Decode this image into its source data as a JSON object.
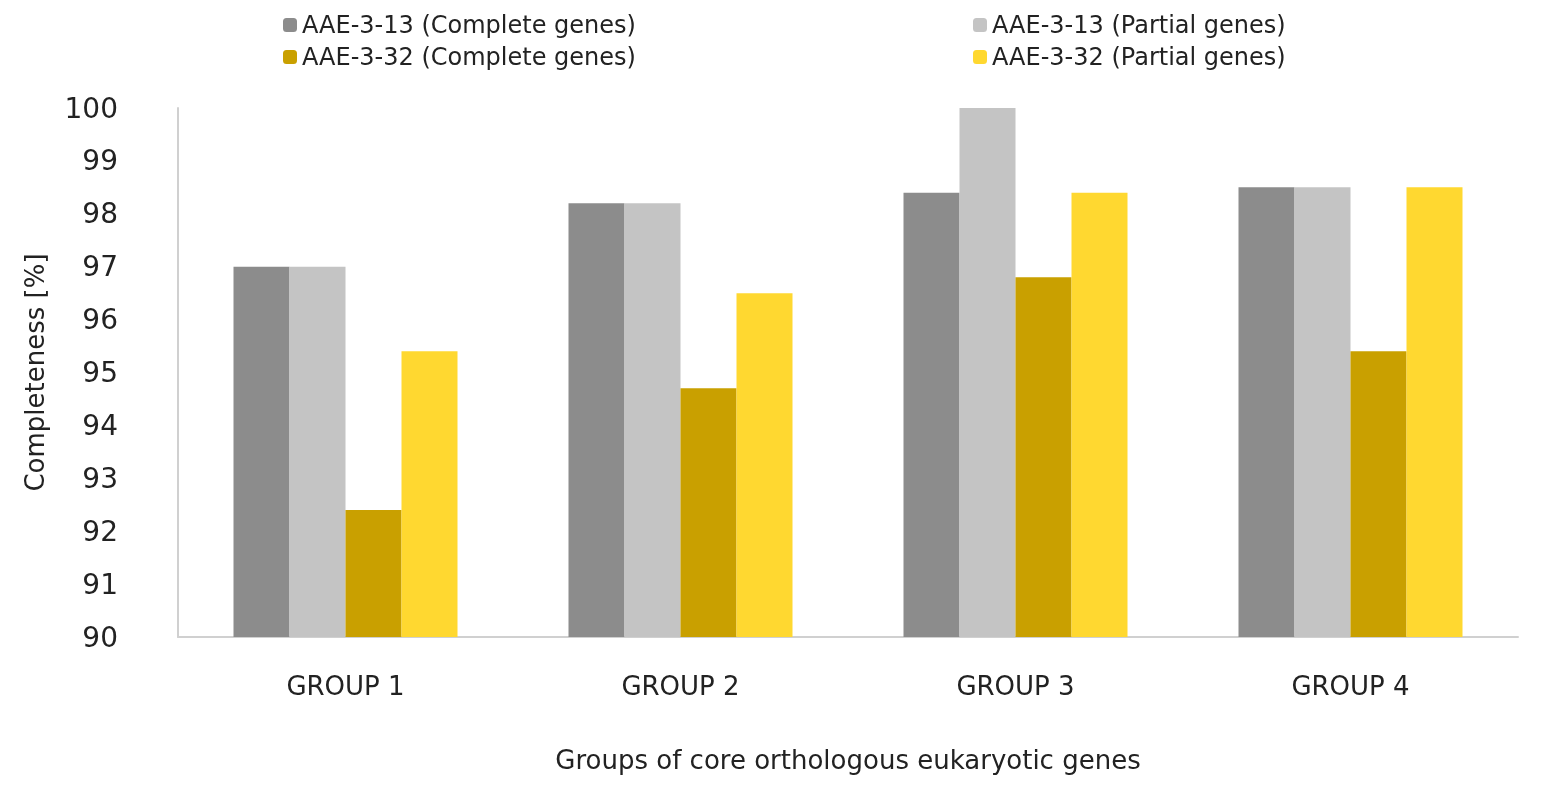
{
  "chart_data": {
    "type": "bar",
    "xlabel": "Groups of core orthologous eukaryotic genes",
    "ylabel": "Completeness [%]",
    "categories": [
      "GROUP 1",
      "GROUP 2",
      "GROUP 3",
      "GROUP 4"
    ],
    "series": [
      {
        "name": "AAE-3-13 (Complete genes)",
        "color": "#8c8c8c",
        "values": [
          97.0,
          98.2,
          98.4,
          98.5
        ]
      },
      {
        "name": "AAE-3-13 (Partial genes)",
        "color": "#c4c4c4",
        "values": [
          97.0,
          98.2,
          100.0,
          98.5
        ]
      },
      {
        "name": "AAE-3-32 (Complete genes)",
        "color": "#c9a000",
        "values": [
          92.4,
          94.7,
          96.8,
          95.4
        ]
      },
      {
        "name": "AAE-3-32 (Partial genes)",
        "color": "#ffd830",
        "values": [
          95.4,
          96.5,
          98.4,
          98.5
        ]
      }
    ],
    "ylim": [
      90,
      100
    ],
    "yticks": [
      90,
      91,
      92,
      93,
      94,
      95,
      96,
      97,
      98,
      99,
      100
    ],
    "grid": false,
    "legend": "top"
  }
}
